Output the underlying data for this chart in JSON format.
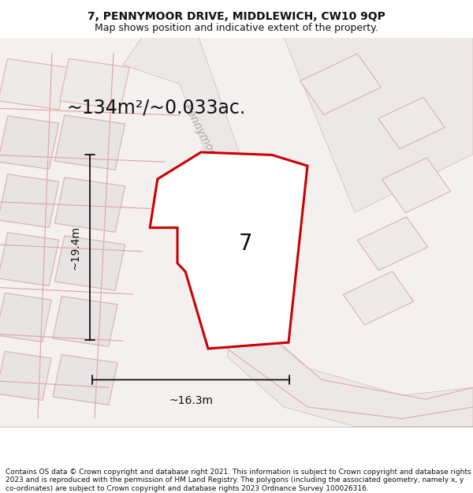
{
  "title": "7, PENNYMOOR DRIVE, MIDDLEWICH, CW10 9QP",
  "subtitle": "Map shows position and indicative extent of the property.",
  "area_text": "~134m²/~0.033ac.",
  "width_label": "~16.3m",
  "height_label": "~19.4m",
  "property_number": "7",
  "footer_text": "Contains OS data © Crown copyright and database right 2021. This information is subject to Crown copyright and database rights 2023 and is reproduced with the permission of HM Land Registry. The polygons (including the associated geometry, namely x, y co-ordinates) are subject to Crown copyright and database rights 2023 Ordnance Survey 100026316.",
  "map_bg_color": "#f5f0f0",
  "red_line_color": "#cc0000",
  "dim_line_color": "#111111",
  "figsize": [
    6.0,
    6.25
  ],
  "dpi": 100,
  "title_fontsize": 10,
  "subtitle_fontsize": 9,
  "area_fontsize": 17,
  "number_fontsize": 20,
  "dim_fontsize": 10,
  "footer_fontsize": 6.5,
  "road_label_fontsize": 10,
  "road_label_color": "#b0a8a8",
  "building_fc": "#e8e2e2",
  "building_ec": "#d0b8b8",
  "road_fc": "#e8dede",
  "parcel_fc": "#eae4e4",
  "parcel_ec": "#d0b0b0"
}
